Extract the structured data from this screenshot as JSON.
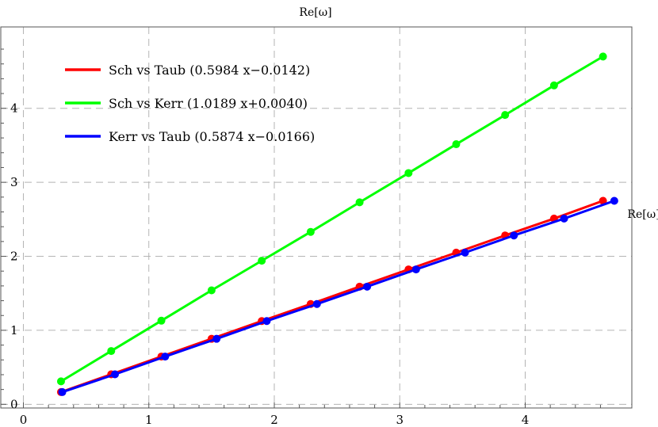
{
  "chart_data": {
    "type": "line",
    "xlabel": "",
    "ylabel": "Re[ω]",
    "top_label": "Re[ω]",
    "xlim": [
      -0.18,
      4.85
    ],
    "ylim": [
      -0.05,
      5.1
    ],
    "xticks": [
      0,
      1,
      2,
      3,
      4
    ],
    "yticks": [
      0,
      1,
      2,
      3,
      4
    ],
    "grid": true,
    "legend_position": "top-left",
    "series": [
      {
        "name": "Sch vs Taub (0.5984 x−0.0142)",
        "color": "#ff0000",
        "x": [
          0.3,
          0.7,
          1.1,
          1.5,
          1.9,
          2.29,
          2.68,
          3.07,
          3.45,
          3.84,
          4.23,
          4.62
        ],
        "y": [
          0.165,
          0.405,
          0.645,
          0.885,
          1.125,
          1.355,
          1.59,
          1.823,
          2.05,
          2.282,
          2.51,
          2.75
        ]
      },
      {
        "name": "Sch vs Kerr (1.0189 x+0.0040)",
        "color": "#00ff00",
        "x": [
          0.3,
          0.7,
          1.1,
          1.5,
          1.9,
          2.29,
          2.68,
          3.07,
          3.45,
          3.84,
          4.23,
          4.62
        ],
        "y": [
          0.31,
          0.72,
          1.13,
          1.54,
          1.94,
          2.33,
          2.73,
          3.125,
          3.515,
          3.91,
          4.31,
          4.7
        ]
      },
      {
        "name": "Kerr vs Taub (0.5874 x−0.0166)",
        "color": "#0000ff",
        "x": [
          0.31,
          0.73,
          1.13,
          1.54,
          1.94,
          2.34,
          2.74,
          3.13,
          3.52,
          3.91,
          4.31,
          4.71
        ],
        "y": [
          0.165,
          0.405,
          0.645,
          0.885,
          1.125,
          1.355,
          1.59,
          1.823,
          2.05,
          2.282,
          2.51,
          2.75
        ]
      }
    ]
  }
}
